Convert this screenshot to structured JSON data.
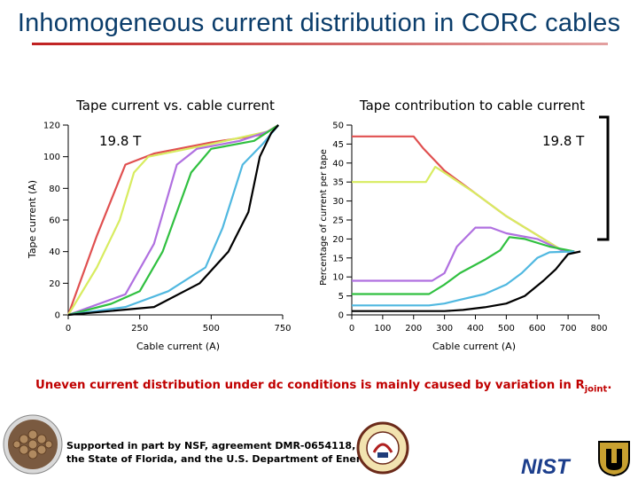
{
  "slide": {
    "title": "Inhomogeneous current distribution in CORC cables",
    "conclusion_text": "Uneven current distribution under dc conditions is mainly caused by variation in R",
    "conclusion_sub": "joint",
    "conclusion_end": ".",
    "support_line1": "Supported in part by NSF, agreement DMR-0654118,",
    "support_line2": "the State of Florida, and the U.S. Department of Energy.",
    "nist_logo_text": "NIST",
    "colors": {
      "title": "#0b3d6b",
      "rule": "#c02020",
      "conclusion": "#c00000"
    }
  },
  "chart_data": [
    {
      "type": "line",
      "title": "Tape current vs. cable current",
      "xlabel": "Cable current (A)",
      "ylabel": "Tape current (A)",
      "annotation": "19.8 T",
      "xlim": [
        0,
        750
      ],
      "ylim": [
        0,
        120
      ],
      "xticks": [
        0,
        250,
        500,
        750
      ],
      "yticks": [
        0,
        20,
        40,
        60,
        80,
        100,
        120
      ],
      "grid": false,
      "series": [
        {
          "color": "#e05050",
          "points": [
            [
              0,
              0
            ],
            [
              100,
              50
            ],
            [
              200,
              95
            ],
            [
              300,
              102
            ],
            [
              500,
              109
            ],
            [
              680,
              114
            ],
            [
              735,
              120
            ]
          ]
        },
        {
          "color": "#d8ec60",
          "points": [
            [
              0,
              0
            ],
            [
              100,
              30
            ],
            [
              180,
              60
            ],
            [
              230,
              90
            ],
            [
              280,
              100
            ],
            [
              500,
              108
            ],
            [
              700,
              116
            ],
            [
              735,
              120
            ]
          ]
        },
        {
          "color": "#b070e0",
          "points": [
            [
              0,
              0
            ],
            [
              200,
              13
            ],
            [
              300,
              45
            ],
            [
              380,
              95
            ],
            [
              450,
              105
            ],
            [
              600,
              110
            ],
            [
              700,
              116
            ],
            [
              735,
              120
            ]
          ]
        },
        {
          "color": "#30c040",
          "points": [
            [
              0,
              0
            ],
            [
              150,
              7
            ],
            [
              250,
              15
            ],
            [
              330,
              40
            ],
            [
              430,
              90
            ],
            [
              500,
              105
            ],
            [
              650,
              110
            ],
            [
              735,
              120
            ]
          ]
        },
        {
          "color": "#50b8e0",
          "points": [
            [
              0,
              0
            ],
            [
              200,
              5
            ],
            [
              350,
              15
            ],
            [
              480,
              30
            ],
            [
              540,
              55
            ],
            [
              610,
              95
            ],
            [
              680,
              108
            ],
            [
              735,
              120
            ]
          ]
        },
        {
          "color": "#000000",
          "points": [
            [
              0,
              0
            ],
            [
              300,
              5
            ],
            [
              460,
              20
            ],
            [
              560,
              40
            ],
            [
              630,
              65
            ],
            [
              670,
              100
            ],
            [
              710,
              115
            ],
            [
              735,
              120
            ]
          ]
        }
      ]
    },
    {
      "type": "line",
      "title": "Tape contribution to cable current",
      "xlabel": "Cable current (A)",
      "ylabel": "Percentage of current per tape",
      "annotation": "19.8 T",
      "xlim": [
        0,
        800
      ],
      "ylim": [
        0,
        50
      ],
      "xticks": [
        0,
        100,
        200,
        300,
        400,
        500,
        600,
        700,
        800
      ],
      "xtick_labels": [
        "0",
        "100",
        "200",
        "300",
        "400",
        "500",
        "600",
        "700",
        "800"
      ],
      "yticks": [
        0,
        5,
        10,
        15,
        20,
        25,
        30,
        35,
        40,
        45,
        50
      ],
      "grid": false,
      "series": [
        {
          "color": "#e05050",
          "points": [
            [
              0,
              47
            ],
            [
              200,
              47
            ],
            [
              230,
              44
            ],
            [
              300,
              38
            ],
            [
              400,
              32
            ],
            [
              500,
              26
            ],
            [
              600,
              21
            ],
            [
              680,
              17
            ],
            [
              720,
              16.7
            ]
          ]
        },
        {
          "color": "#d8ec60",
          "points": [
            [
              0,
              35
            ],
            [
              240,
              35
            ],
            [
              270,
              39
            ],
            [
              290,
              38
            ],
            [
              400,
              32
            ],
            [
              500,
              26
            ],
            [
              600,
              21
            ],
            [
              680,
              17
            ],
            [
              720,
              16.7
            ]
          ]
        },
        {
          "color": "#b070e0",
          "points": [
            [
              0,
              9
            ],
            [
              260,
              9
            ],
            [
              300,
              11
            ],
            [
              340,
              18
            ],
            [
              400,
              23
            ],
            [
              450,
              23
            ],
            [
              500,
              21.5
            ],
            [
              600,
              20
            ],
            [
              680,
              17
            ],
            [
              720,
              16.7
            ]
          ]
        },
        {
          "color": "#30c040",
          "points": [
            [
              0,
              5.5
            ],
            [
              250,
              5.5
            ],
            [
              300,
              8
            ],
            [
              350,
              11
            ],
            [
              430,
              14.5
            ],
            [
              480,
              17
            ],
            [
              510,
              20.5
            ],
            [
              560,
              20
            ],
            [
              640,
              18
            ],
            [
              720,
              16.7
            ]
          ]
        },
        {
          "color": "#50b8e0",
          "points": [
            [
              0,
              2.5
            ],
            [
              250,
              2.5
            ],
            [
              300,
              3
            ],
            [
              350,
              4
            ],
            [
              430,
              5.5
            ],
            [
              500,
              8
            ],
            [
              550,
              11
            ],
            [
              600,
              15
            ],
            [
              640,
              16.5
            ],
            [
              720,
              16.7
            ]
          ]
        },
        {
          "color": "#000000",
          "points": [
            [
              0,
              1
            ],
            [
              300,
              1
            ],
            [
              360,
              1.3
            ],
            [
              430,
              2
            ],
            [
              500,
              3
            ],
            [
              560,
              5
            ],
            [
              620,
              9
            ],
            [
              660,
              12
            ],
            [
              700,
              16
            ],
            [
              740,
              16.7
            ]
          ]
        }
      ]
    }
  ]
}
